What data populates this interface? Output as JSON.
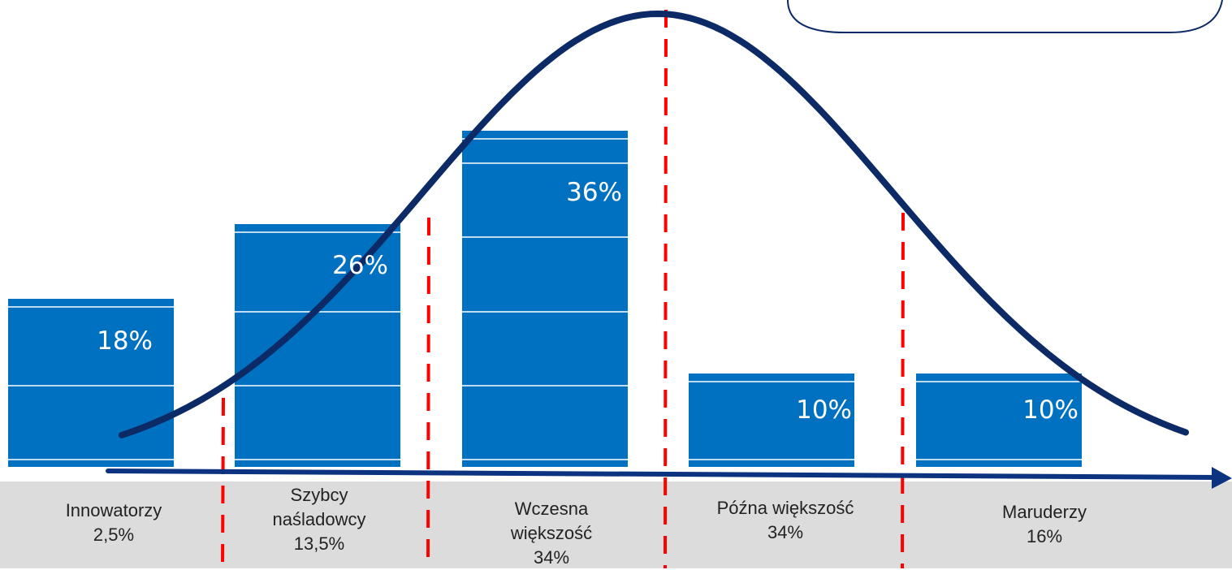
{
  "chart_data": {
    "type": "bar",
    "title": "",
    "xlabel": "",
    "ylabel": "",
    "categories": [
      "Innowatorzy",
      "Szybcy naśladowcy",
      "Wczesna większość",
      "Późna większość",
      "Maruderzy"
    ],
    "values": [
      18,
      26,
      36,
      10,
      10
    ],
    "value_labels": [
      "18%",
      "26%",
      "36%",
      "10%",
      "10%"
    ],
    "ylim": [
      0,
      40
    ],
    "category_labels": [
      {
        "name_lines": [
          "Innowatorzy"
        ],
        "share": "2,5%"
      },
      {
        "name_lines": [
          "Szybcy",
          "naśladowcy"
        ],
        "share": "13,5%"
      },
      {
        "name_lines": [
          "Wczesna",
          "większość"
        ],
        "share": "34%"
      },
      {
        "name_lines": [
          "Późna większość"
        ],
        "share": "34%"
      },
      {
        "name_lines": [
          "Maruderzy"
        ],
        "share": "16%"
      }
    ],
    "overlay": {
      "type": "normal-distribution-curve",
      "segment_boundaries_in_sd": [
        -2,
        -1,
        0,
        1
      ]
    },
    "grid": false
  },
  "colors": {
    "bar": "#0070c0",
    "curve": "#0c2a66",
    "axis": "#0c3380",
    "divider": "#ff0000",
    "band": "#dcdcdc"
  }
}
